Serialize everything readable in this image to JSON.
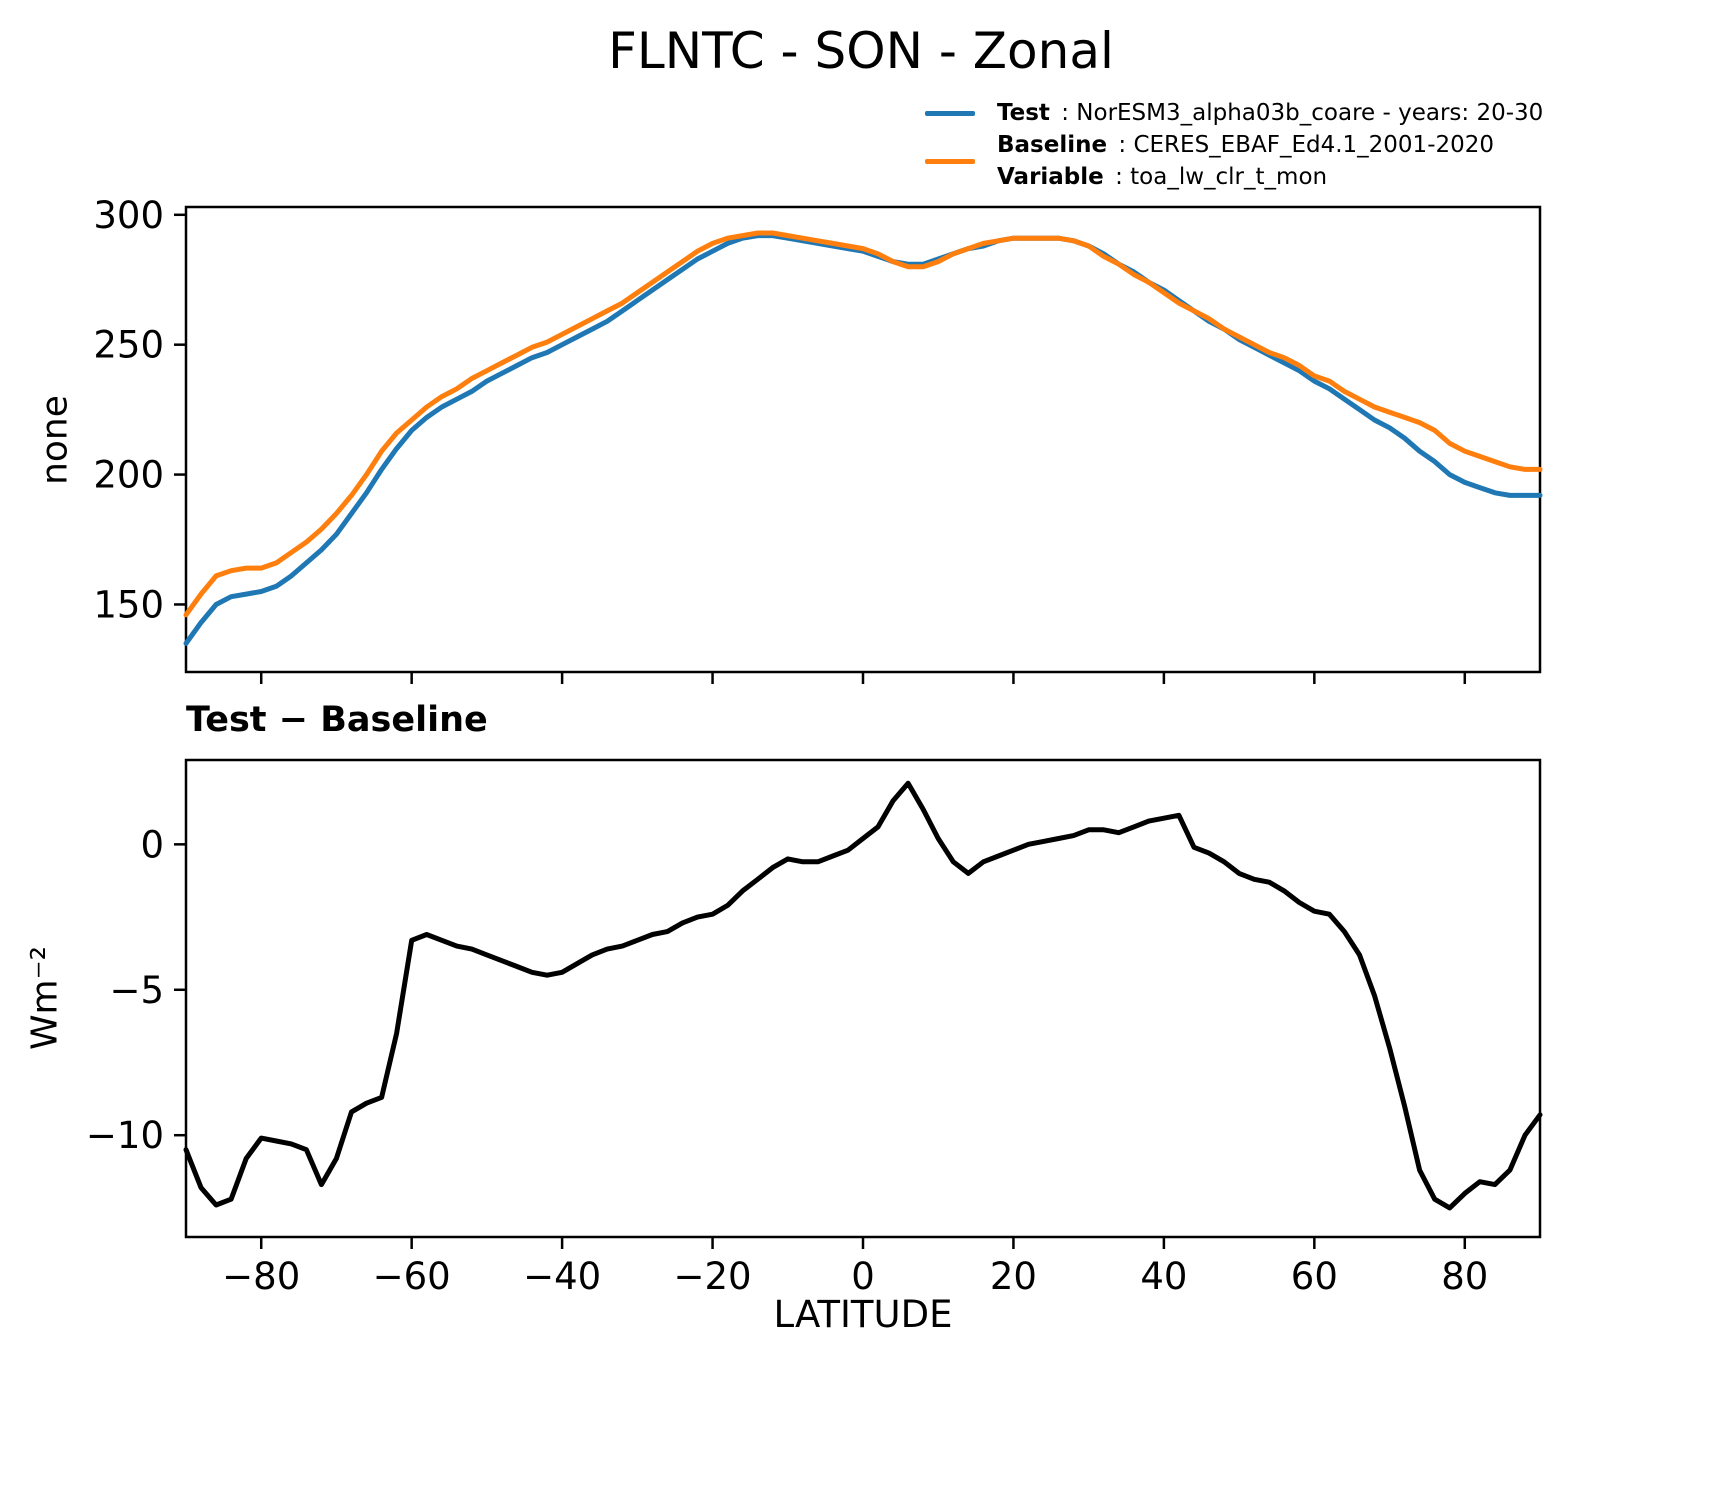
{
  "figure": {
    "title": "FLNTC - SON - Zonal",
    "subplot_title": "Test − Baseline",
    "xlabel": "LATITUDE",
    "ylabel_top": "none",
    "ylabel_bottom": "Wm⁻²"
  },
  "legend": {
    "items": [
      {
        "label": "Test",
        "text": ": NorESM3_alpha03b_coare - years: 20-30",
        "color": "#1f77b4"
      },
      {
        "label": "Baseline",
        "text": ": CERES_EBAF_Ed4.1_2001-2020",
        "color": "#ff7f0e"
      },
      {
        "label": "Variable",
        "text": ": toa_lw_clr_t_mon",
        "color": null
      }
    ]
  },
  "colors": {
    "test": "#1f77b4",
    "baseline": "#ff7f0e",
    "difference": "#000000"
  },
  "chart_data": [
    {
      "type": "line",
      "title": "FLNTC - SON - Zonal",
      "xlabel": "",
      "ylabel": "none",
      "xlim": [
        -90,
        90
      ],
      "ylim": [
        124,
        303
      ],
      "xticks": [
        -80,
        -60,
        -40,
        -20,
        0,
        20,
        40,
        60,
        80
      ],
      "yticks": [
        150,
        200,
        250,
        300
      ],
      "show_xticklabels": false,
      "grid": false,
      "legend_position": "upper right, above axes",
      "x": [
        -90,
        -88,
        -86,
        -84,
        -82,
        -80,
        -78,
        -76,
        -74,
        -72,
        -70,
        -68,
        -66,
        -64,
        -62,
        -60,
        -58,
        -56,
        -54,
        -52,
        -50,
        -48,
        -46,
        -44,
        -42,
        -40,
        -38,
        -36,
        -34,
        -32,
        -30,
        -28,
        -26,
        -24,
        -22,
        -20,
        -18,
        -16,
        -14,
        -12,
        -10,
        -8,
        -6,
        -4,
        -2,
        0,
        2,
        4,
        6,
        8,
        10,
        12,
        14,
        16,
        18,
        20,
        22,
        24,
        26,
        28,
        30,
        32,
        34,
        36,
        38,
        40,
        42,
        44,
        46,
        48,
        50,
        52,
        54,
        56,
        58,
        60,
        62,
        64,
        66,
        68,
        70,
        72,
        74,
        76,
        78,
        80,
        82,
        84,
        86,
        88,
        90
      ],
      "series": [
        {
          "name": "Test : NorESM3_alpha03b_coare - years: 20-30",
          "color": "#1f77b4",
          "linewidth": 5,
          "values": [
            135,
            143,
            150,
            153,
            154,
            155,
            157,
            161,
            166,
            171,
            177,
            185,
            193,
            202,
            210,
            217,
            222,
            226,
            229,
            232,
            236,
            239,
            242,
            245,
            247,
            250,
            253,
            256,
            259,
            263,
            267,
            271,
            275,
            279,
            283,
            286,
            289,
            291,
            292,
            292,
            291,
            290,
            289,
            288,
            287,
            286,
            284,
            282,
            281,
            281,
            283,
            285,
            287,
            288,
            290,
            291,
            291,
            291,
            291,
            290,
            288,
            285,
            281,
            278,
            274,
            271,
            267,
            263,
            259,
            256,
            252,
            249,
            246,
            243,
            240,
            236,
            233,
            229,
            225,
            221,
            218,
            214,
            209,
            205,
            200,
            197,
            195,
            193,
            192,
            192,
            192
          ]
        },
        {
          "name": "Baseline : CERES_EBAF_Ed4.1_2001-2020 (toa_lw_clr_t_mon)",
          "color": "#ff7f0e",
          "linewidth": 5,
          "values": [
            146,
            154,
            161,
            163,
            164,
            164,
            166,
            170,
            174,
            179,
            185,
            192,
            200,
            209,
            216,
            221,
            226,
            230,
            233,
            237,
            240,
            243,
            246,
            249,
            251,
            254,
            257,
            260,
            263,
            266,
            270,
            274,
            278,
            282,
            286,
            289,
            291,
            292,
            293,
            293,
            292,
            291,
            290,
            289,
            288,
            287,
            285,
            282,
            280,
            280,
            282,
            285,
            287,
            289,
            290,
            291,
            291,
            291,
            291,
            290,
            288,
            284,
            281,
            277,
            274,
            270,
            266,
            263,
            260,
            256,
            253,
            250,
            247,
            245,
            242,
            238,
            236,
            232,
            229,
            226,
            224,
            222,
            220,
            217,
            212,
            209,
            207,
            205,
            203,
            202,
            202
          ]
        }
      ]
    },
    {
      "type": "line",
      "title": "Test − Baseline",
      "xlabel": "LATITUDE",
      "ylabel": "Wm⁻²",
      "xlim": [
        -90,
        90
      ],
      "ylim": [
        -13.5,
        2.9
      ],
      "xticks": [
        -80,
        -60,
        -40,
        -20,
        0,
        20,
        40,
        60,
        80
      ],
      "yticks": [
        0,
        -5,
        -10
      ],
      "show_xticklabels": true,
      "grid": false,
      "x": [
        -90,
        -88,
        -86,
        -84,
        -82,
        -80,
        -78,
        -76,
        -74,
        -72,
        -70,
        -68,
        -66,
        -64,
        -62,
        -60,
        -58,
        -56,
        -54,
        -52,
        -50,
        -48,
        -46,
        -44,
        -42,
        -40,
        -38,
        -36,
        -34,
        -32,
        -30,
        -28,
        -26,
        -24,
        -22,
        -20,
        -18,
        -16,
        -14,
        -12,
        -10,
        -8,
        -6,
        -4,
        -2,
        0,
        2,
        4,
        6,
        8,
        10,
        12,
        14,
        16,
        18,
        20,
        22,
        24,
        26,
        28,
        30,
        32,
        34,
        36,
        38,
        40,
        42,
        44,
        46,
        48,
        50,
        52,
        54,
        56,
        58,
        60,
        62,
        64,
        66,
        68,
        70,
        72,
        74,
        76,
        78,
        80,
        82,
        84,
        86,
        88,
        90
      ],
      "series": [
        {
          "name": "Test − Baseline",
          "color": "#000000",
          "linewidth": 5,
          "values": [
            -10.5,
            -11.8,
            -12.4,
            -12.2,
            -10.8,
            -10.1,
            -10.2,
            -10.3,
            -10.5,
            -11.7,
            -10.8,
            -9.2,
            -8.9,
            -8.7,
            -6.5,
            -3.3,
            -3.1,
            -3.3,
            -3.5,
            -3.6,
            -3.8,
            -4.0,
            -4.2,
            -4.4,
            -4.5,
            -4.4,
            -4.1,
            -3.8,
            -3.6,
            -3.5,
            -3.3,
            -3.1,
            -3.0,
            -2.7,
            -2.5,
            -2.4,
            -2.1,
            -1.6,
            -1.2,
            -0.8,
            -0.5,
            -0.6,
            -0.6,
            -0.4,
            -0.2,
            0.2,
            0.6,
            1.5,
            2.1,
            1.2,
            0.2,
            -0.6,
            -1.0,
            -0.6,
            -0.4,
            -0.2,
            0.0,
            0.1,
            0.2,
            0.3,
            0.5,
            0.5,
            0.4,
            0.6,
            0.8,
            0.9,
            1.0,
            -0.1,
            -0.3,
            -0.6,
            -1.0,
            -1.2,
            -1.3,
            -1.6,
            -2.0,
            -2.3,
            -2.4,
            -3.0,
            -3.8,
            -5.2,
            -7.0,
            -9.0,
            -11.2,
            -12.2,
            -12.5,
            -12.0,
            -11.6,
            -11.7,
            -11.2,
            -10.0,
            -9.3
          ]
        }
      ]
    }
  ]
}
